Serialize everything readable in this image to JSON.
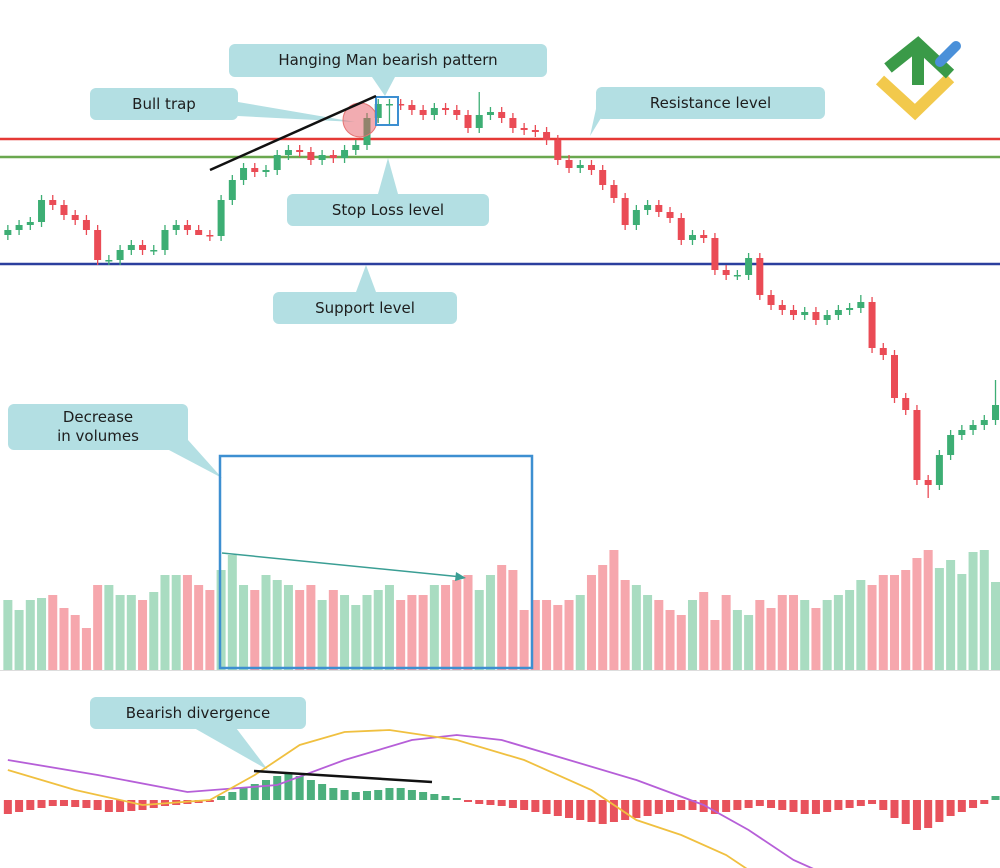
{
  "chart_data": [
    {
      "type": "candlestick",
      "xlim": [
        -0.7,
        88.4
      ],
      "ylim": [
        0,
        420
      ],
      "up_color": "#3dae74",
      "down_color": "#ea4b55",
      "open": [
        275,
        280,
        285,
        288,
        310,
        305,
        295,
        290,
        280,
        250,
        250,
        260,
        265,
        260,
        260,
        280,
        285,
        280,
        275,
        274,
        310,
        330,
        342,
        338,
        340,
        355,
        360,
        358,
        350,
        355,
        352,
        360,
        365,
        392,
        406,
        406,
        405,
        400,
        395,
        402,
        400,
        395,
        382,
        395,
        398,
        392,
        382,
        380,
        378,
        370,
        350,
        342,
        345,
        340,
        325,
        312,
        285,
        300,
        305,
        298,
        292,
        270,
        275,
        272,
        240,
        235,
        235,
        252,
        215,
        205,
        200,
        195,
        198,
        190,
        195,
        200,
        202,
        208,
        162,
        155,
        112,
        100,
        30,
        25,
        55,
        75,
        80,
        85,
        90
      ],
      "high": [
        285,
        290,
        293,
        315,
        315,
        310,
        300,
        295,
        285,
        255,
        265,
        270,
        270,
        265,
        285,
        290,
        290,
        285,
        280,
        315,
        335,
        347,
        347,
        345,
        360,
        365,
        365,
        363,
        360,
        360,
        365,
        370,
        397,
        411,
        411,
        411,
        410,
        405,
        407,
        407,
        405,
        400,
        418,
        403,
        403,
        397,
        387,
        385,
        383,
        375,
        355,
        350,
        350,
        345,
        330,
        317,
        305,
        310,
        310,
        303,
        297,
        280,
        280,
        277,
        245,
        240,
        257,
        257,
        220,
        210,
        205,
        203,
        203,
        200,
        205,
        207,
        215,
        213,
        167,
        160,
        117,
        105,
        35,
        60,
        80,
        85,
        90,
        95,
        130
      ],
      "low": [
        270,
        275,
        280,
        283,
        300,
        290,
        285,
        275,
        245,
        245,
        245,
        255,
        255,
        255,
        255,
        275,
        275,
        275,
        269,
        269,
        305,
        325,
        333,
        333,
        335,
        350,
        353,
        345,
        345,
        347,
        347,
        355,
        360,
        387,
        386,
        400,
        395,
        390,
        390,
        395,
        390,
        377,
        377,
        390,
        387,
        377,
        375,
        373,
        365,
        345,
        337,
        337,
        335,
        320,
        307,
        280,
        280,
        295,
        293,
        287,
        265,
        265,
        267,
        235,
        230,
        230,
        230,
        210,
        200,
        195,
        190,
        190,
        185,
        185,
        190,
        195,
        197,
        157,
        150,
        107,
        95,
        25,
        12,
        20,
        50,
        70,
        75,
        80,
        85
      ],
      "close": [
        280,
        285,
        288,
        310,
        305,
        295,
        290,
        280,
        250,
        250,
        260,
        265,
        260,
        260,
        280,
        285,
        280,
        275,
        274,
        310,
        330,
        342,
        338,
        340,
        355,
        360,
        358,
        350,
        355,
        352,
        360,
        365,
        392,
        406,
        406,
        405,
        400,
        395,
        402,
        400,
        395,
        382,
        395,
        398,
        392,
        382,
        380,
        378,
        370,
        350,
        342,
        345,
        340,
        325,
        312,
        285,
        300,
        305,
        298,
        292,
        270,
        275,
        272,
        240,
        235,
        235,
        252,
        215,
        205,
        200,
        195,
        198,
        190,
        195,
        200,
        202,
        208,
        162,
        155,
        112,
        100,
        30,
        25,
        55,
        75,
        80,
        85,
        90,
        105
      ],
      "hlines": [
        {
          "value": 371,
          "color": "#e53935"
        },
        {
          "value": 353,
          "color": "#6aa84f"
        },
        {
          "value": 246,
          "color": "#2b3f9e"
        }
      ],
      "annotations": [
        "Hanging Man bearish pattern",
        "Bull trap",
        "Resistance level",
        "Stop Loss level",
        "Support level"
      ]
    },
    {
      "type": "volume",
      "xlim": [
        -0.7,
        88.4
      ],
      "ylim": [
        0,
        130
      ],
      "up_color": "#a9dcc1",
      "down_color": "#f6a7ad",
      "values": [
        70,
        60,
        70,
        72,
        75,
        62,
        55,
        42,
        85,
        85,
        75,
        75,
        70,
        78,
        95,
        95,
        95,
        85,
        80,
        100,
        115,
        85,
        80,
        95,
        90,
        85,
        80,
        85,
        70,
        80,
        75,
        65,
        75,
        80,
        85,
        70,
        75,
        75,
        85,
        85,
        90,
        95,
        80,
        95,
        105,
        100,
        60,
        70,
        70,
        65,
        70,
        75,
        95,
        105,
        120,
        90,
        85,
        75,
        70,
        60,
        55,
        70,
        78,
        50,
        75,
        60,
        55,
        70,
        62,
        75,
        75,
        70,
        62,
        70,
        75,
        80,
        90,
        85,
        95,
        95,
        100,
        112,
        120,
        102,
        110,
        96,
        118,
        120,
        88
      ],
      "annotations": [
        "Decrease\nin volumes"
      ]
    },
    {
      "type": "macd",
      "xlim": [
        -0.7,
        88.4
      ],
      "ylim": [
        -70,
        70
      ],
      "pos_color": "#4caf7d",
      "neg_color": "#e8525c",
      "values": [
        -14,
        -12,
        -10,
        -8,
        -6,
        -6,
        -7,
        -8,
        -10,
        -12,
        -12,
        -11,
        -10,
        -8,
        -6,
        -5,
        -4,
        -3,
        -2,
        4,
        8,
        12,
        16,
        20,
        24,
        26,
        24,
        20,
        16,
        12,
        10,
        8,
        9,
        10,
        12,
        12,
        10,
        8,
        6,
        4,
        2,
        -2,
        -4,
        -5,
        -6,
        -8,
        -10,
        -12,
        -14,
        -16,
        -18,
        -20,
        -22,
        -24,
        -22,
        -20,
        -18,
        -16,
        -14,
        -12,
        -10,
        -10,
        -12,
        -14,
        -12,
        -10,
        -8,
        -6,
        -8,
        -10,
        -12,
        -14,
        -14,
        -12,
        -10,
        -8,
        -6,
        -4,
        -10,
        -18,
        -24,
        -30,
        -28,
        -22,
        -16,
        -12,
        -8,
        -4,
        4
      ],
      "series": [
        {
          "color": "#b65fd8",
          "x": [
            0,
            8,
            16,
            24,
            30,
            36,
            40,
            44,
            50,
            56,
            62,
            66,
            70,
            73
          ],
          "values": [
            40,
            25,
            8,
            15,
            40,
            60,
            65,
            60,
            40,
            20,
            -5,
            -30,
            -60,
            -75
          ]
        },
        {
          "color": "#f0c040",
          "x": [
            0,
            6,
            12,
            18,
            22,
            26,
            30,
            34,
            40,
            46,
            52,
            56,
            60,
            64,
            66
          ],
          "values": [
            30,
            10,
            -5,
            0,
            25,
            55,
            68,
            70,
            60,
            40,
            10,
            -20,
            -35,
            -55,
            -70
          ]
        }
      ],
      "annotations": [
        "Bearish divergence"
      ]
    }
  ]
}
